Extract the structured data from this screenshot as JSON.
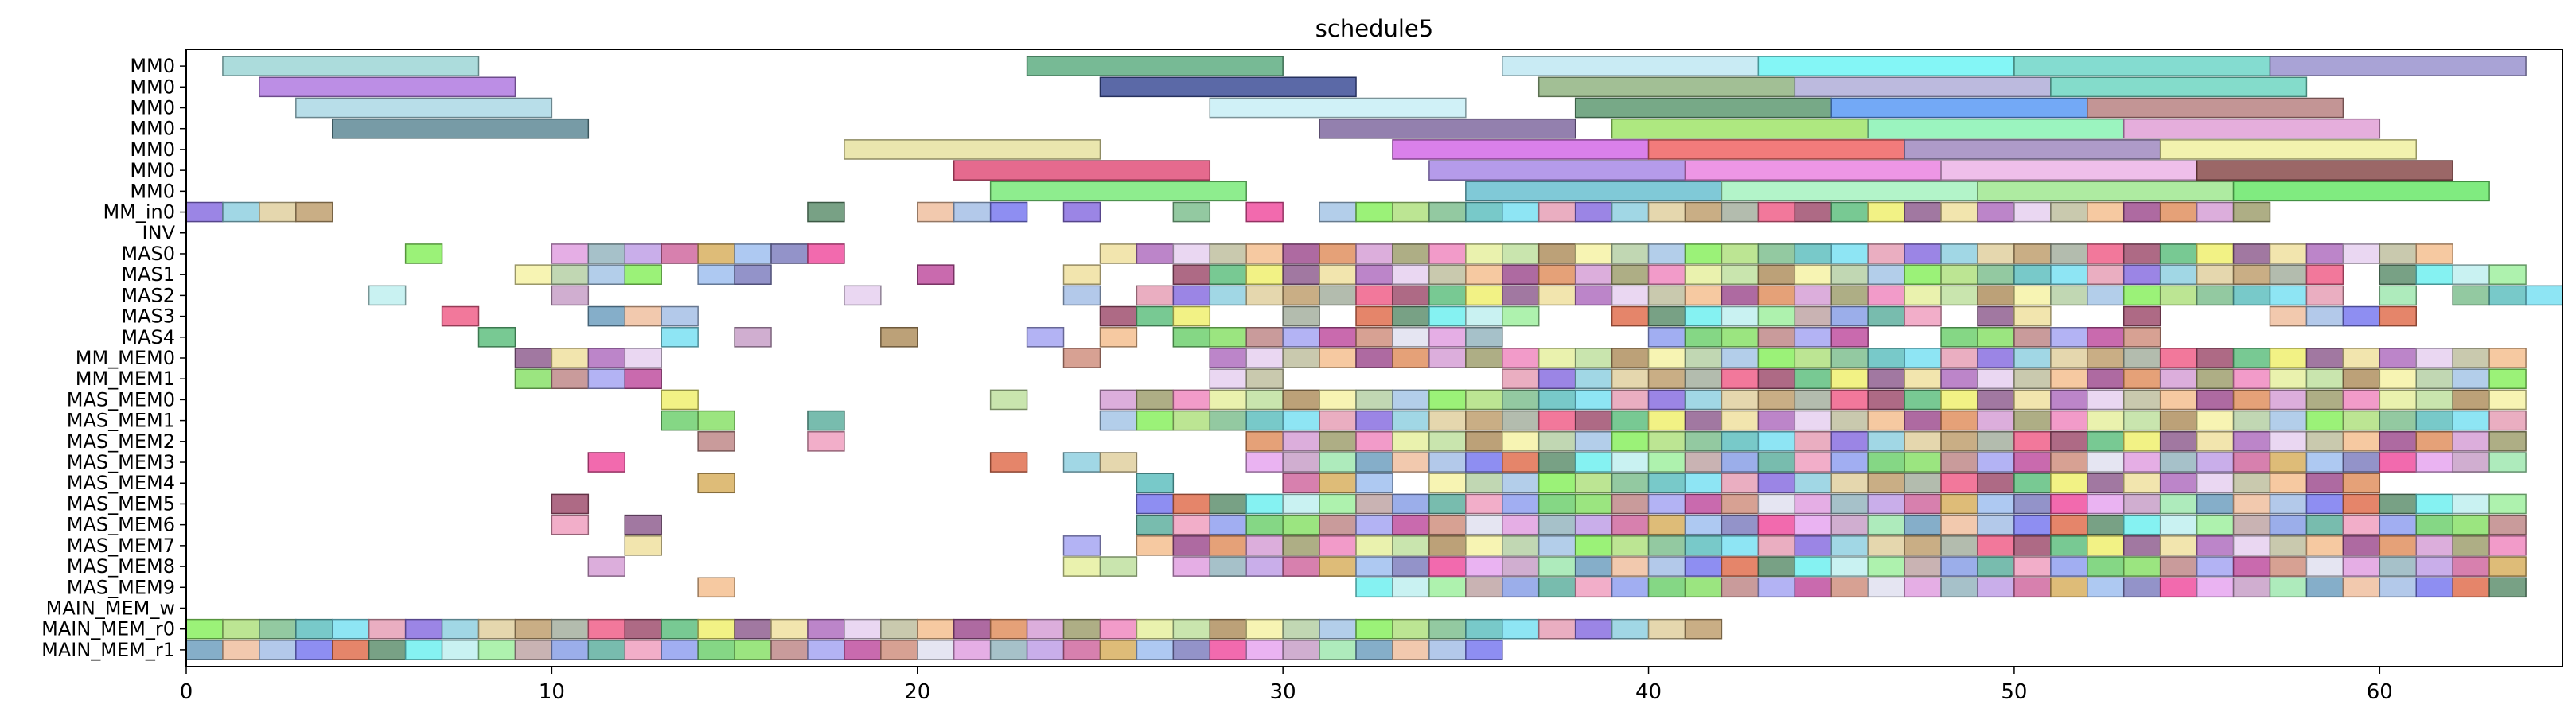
{
  "chart_data": {
    "type": "gantt",
    "title": "schedule5",
    "xlabel": "",
    "ylabel": "",
    "xlim": [
      0,
      65
    ],
    "xticks": [
      0,
      10,
      20,
      30,
      40,
      50,
      60
    ],
    "grid": false,
    "legend": "none",
    "rows": [
      "MM0",
      "MM0",
      "MM0",
      "MM0",
      "MM0",
      "MM0",
      "MM0",
      "MM_in0",
      "INV",
      "MAS0",
      "MAS1",
      "MAS2",
      "MAS3",
      "MAS4",
      "MM_MEM0",
      "MM_MEM1",
      "MAS_MEM0",
      "MAS_MEM1",
      "MAS_MEM2",
      "MAS_MEM3",
      "MAS_MEM4",
      "MAS_MEM5",
      "MAS_MEM6",
      "MAS_MEM7",
      "MAS_MEM8",
      "MAS_MEM9",
      "MAIN_MEM_w",
      "MAIN_MEM_r0",
      "MAIN_MEM_r1"
    ],
    "tasks": [
      {
        "row": 0,
        "start": 1,
        "end": 8,
        "color": "#9dd6d6"
      },
      {
        "row": 0,
        "start": 23,
        "end": 30,
        "color": "#5fae83"
      },
      {
        "row": 0,
        "start": 36,
        "end": 43,
        "color": "#bfe8f2"
      },
      {
        "row": 0,
        "start": 43,
        "end": 50,
        "color": "#6ff5f5"
      },
      {
        "row": 0,
        "start": 50,
        "end": 57,
        "color": "#6fd6c8"
      },
      {
        "row": 0,
        "start": 57,
        "end": 64,
        "color": "#9a93cf"
      },
      {
        "row": 1,
        "start": 2,
        "end": 9,
        "color": "#b07ae0"
      },
      {
        "row": 1,
        "start": 25,
        "end": 32,
        "color": "#3e4f98"
      },
      {
        "row": 1,
        "start": 37,
        "end": 44,
        "color": "#92b483"
      },
      {
        "row": 1,
        "start": 44,
        "end": 51,
        "color": "#b0aed8"
      },
      {
        "row": 1,
        "start": 51,
        "end": 58,
        "color": "#6fd6c2"
      },
      {
        "row": 2,
        "start": 3,
        "end": 10,
        "color": "#acd8e5"
      },
      {
        "row": 2,
        "start": 28,
        "end": 35,
        "color": "#c8eef6"
      },
      {
        "row": 2,
        "start": 38,
        "end": 45,
        "color": "#5f9a72"
      },
      {
        "row": 2,
        "start": 45,
        "end": 52,
        "color": "#5a9af5"
      },
      {
        "row": 2,
        "start": 52,
        "end": 59,
        "color": "#b98282"
      },
      {
        "row": 3,
        "start": 4,
        "end": 11,
        "color": "#5f8a96"
      },
      {
        "row": 3,
        "start": 31,
        "end": 38,
        "color": "#806aa0"
      },
      {
        "row": 3,
        "start": 39,
        "end": 46,
        "color": "#a0e46a"
      },
      {
        "row": 3,
        "start": 46,
        "end": 53,
        "color": "#8af2b4"
      },
      {
        "row": 3,
        "start": 53,
        "end": 60,
        "color": "#e0a0d6"
      },
      {
        "row": 4,
        "start": 18,
        "end": 25,
        "color": "#e6e2a0"
      },
      {
        "row": 4,
        "start": 33,
        "end": 40,
        "color": "#d46ae6"
      },
      {
        "row": 4,
        "start": 40,
        "end": 47,
        "color": "#f06464"
      },
      {
        "row": 4,
        "start": 47,
        "end": 54,
        "color": "#a08ac0"
      },
      {
        "row": 4,
        "start": 54,
        "end": 61,
        "color": "#f0f0a0"
      },
      {
        "row": 5,
        "start": 21,
        "end": 28,
        "color": "#e0507a"
      },
      {
        "row": 5,
        "start": 34,
        "end": 41,
        "color": "#a88ae6"
      },
      {
        "row": 5,
        "start": 41,
        "end": 48,
        "color": "#ea84e0"
      },
      {
        "row": 5,
        "start": 48,
        "end": 55,
        "color": "#ecb4e6"
      },
      {
        "row": 5,
        "start": 55,
        "end": 62,
        "color": "#8a4c4c"
      },
      {
        "row": 6,
        "start": 22,
        "end": 29,
        "color": "#7aea7a"
      },
      {
        "row": 6,
        "start": 35,
        "end": 42,
        "color": "#6ac0d0"
      },
      {
        "row": 6,
        "start": 42,
        "end": 49,
        "color": "#a6f2c0"
      },
      {
        "row": 6,
        "start": 49,
        "end": 56,
        "color": "#a0e890"
      },
      {
        "row": 6,
        "start": 56,
        "end": 63,
        "color": "#6ae86a"
      }
    ],
    "unit_cells": {
      "palette": [
        "#a6c0e6",
        "#f6f2a6",
        "#8ae06a",
        "#a6b0a0",
        "#f050a0",
        "#d6a0d6",
        "#c0a6a6",
        "#7ae0f2",
        "#96b6c0",
        "#b070c0",
        "#7a7af0",
        "#b6d0a6",
        "#c08a8a",
        "#f0608a",
        "#e6a6f0",
        "#a0a070",
        "#8aa0e6",
        "#e6a0b6",
        "#c0a0e6",
        "#e6d0f0",
        "#e07050",
        "#a6c6e6",
        "#a6a6f2",
        "#a05070",
        "#c8a0c8",
        "#f08ac0",
        "#60b0a0",
        "#8a70e0",
        "#d06aa0",
        "#c0c0a0",
        "#609070",
        "#8af060",
        "#c050a0",
        "#60c080",
        "#a0e8b0",
        "#e6f0a0",
        "#f0a0c0",
        "#90d0e0",
        "#d8b060",
        "#f5c090",
        "#70f0f0",
        "#b0e080",
        "#d09080",
        "#f0f070",
        "#70a0c0",
        "#c0e0a0",
        "#90a0f0",
        "#e0d0a0",
        "#a0c0f0",
        "#a05090",
        "#c0f0f0",
        "#80c090",
        "#e0e0f0",
        "#906090",
        "#f0c0a0",
        "#b09060",
        "#70d070",
        "#c0a070",
        "#8080c0",
        "#e09060",
        "#a0f0a0",
        "#60c0c0",
        "#e0a0e0",
        "#f0e0a0"
      ],
      "rows": [
        {
          "row": 7,
          "slots": [
            0,
            1,
            2,
            3,
            17,
            20,
            21,
            22,
            24,
            27,
            29,
            31,
            32,
            33,
            34,
            35,
            36,
            37,
            38,
            39,
            40,
            41,
            42,
            43,
            44,
            45,
            46,
            47,
            48,
            49,
            50,
            51,
            52,
            53,
            54,
            55,
            56
          ]
        },
        {
          "row": 9,
          "slots": [
            6,
            10,
            11,
            12,
            13,
            14,
            15,
            16,
            17,
            25,
            26,
            27,
            28,
            29,
            30,
            31,
            32,
            33,
            34,
            35,
            36,
            37,
            38,
            39,
            40,
            41,
            42,
            43,
            44,
            45,
            46,
            47,
            48,
            49,
            50,
            51,
            52,
            53,
            54,
            55,
            56,
            57,
            58,
            59,
            60,
            61
          ]
        },
        {
          "row": 10,
          "slots": [
            9,
            10,
            11,
            12,
            14,
            15,
            20,
            24,
            27,
            28,
            29,
            30,
            31,
            32,
            33,
            34,
            35,
            36,
            37,
            38,
            39,
            40,
            41,
            42,
            43,
            44,
            45,
            46,
            47,
            48,
            49,
            50,
            51,
            52,
            53,
            54,
            55,
            56,
            57,
            58,
            60,
            61,
            62,
            63
          ]
        },
        {
          "row": 11,
          "slots": [
            5,
            10,
            18,
            24,
            26,
            27,
            28,
            29,
            30,
            31,
            32,
            33,
            34,
            35,
            36,
            37,
            38,
            39,
            40,
            41,
            42,
            43,
            44,
            45,
            46,
            47,
            48,
            49,
            50,
            51,
            52,
            53,
            54,
            55,
            56,
            57,
            58,
            60,
            62,
            63,
            64
          ]
        },
        {
          "row": 12,
          "slots": [
            7,
            11,
            12,
            13,
            25,
            26,
            27,
            30,
            32,
            33,
            34,
            35,
            36,
            39,
            40,
            41,
            42,
            43,
            44,
            45,
            46,
            47,
            49,
            50,
            53,
            57,
            58,
            59,
            60
          ]
        },
        {
          "row": 13,
          "slots": [
            8,
            13,
            15,
            19,
            23,
            25,
            27,
            28,
            29,
            30,
            31,
            32,
            33,
            34,
            35,
            40,
            41,
            42,
            43,
            44,
            45,
            48,
            49,
            50,
            51,
            52,
            53
          ]
        },
        {
          "row": 14,
          "slots": [
            9,
            10,
            11,
            12,
            24,
            28,
            29,
            30,
            31,
            32,
            33,
            34,
            35,
            36,
            37,
            38,
            39,
            40,
            41,
            42,
            43,
            44,
            45,
            46,
            47,
            48,
            49,
            50,
            51,
            52,
            53,
            54,
            55,
            56,
            57,
            58,
            59,
            60,
            61,
            62,
            63
          ]
        },
        {
          "row": 15,
          "slots": [
            9,
            10,
            11,
            12,
            28,
            29,
            36,
            37,
            38,
            39,
            40,
            41,
            42,
            43,
            44,
            45,
            46,
            47,
            48,
            49,
            50,
            51,
            52,
            53,
            54,
            55,
            56,
            57,
            58,
            59,
            60,
            61,
            62,
            63
          ]
        },
        {
          "row": 16,
          "slots": [
            13,
            22,
            25,
            26,
            27,
            28,
            29,
            30,
            31,
            32,
            33,
            34,
            35,
            36,
            37,
            38,
            39,
            40,
            41,
            42,
            43,
            44,
            45,
            46,
            47,
            48,
            49,
            50,
            51,
            52,
            53,
            54,
            55,
            56,
            57,
            58,
            59,
            60,
            61,
            62,
            63
          ]
        },
        {
          "row": 17,
          "slots": [
            13,
            14,
            17,
            25,
            26,
            27,
            28,
            29,
            30,
            31,
            32,
            33,
            34,
            35,
            36,
            37,
            38,
            39,
            40,
            41,
            42,
            43,
            44,
            45,
            46,
            47,
            48,
            49,
            50,
            51,
            52,
            53,
            54,
            55,
            56,
            57,
            58,
            59,
            60,
            61,
            62,
            63
          ]
        },
        {
          "row": 18,
          "slots": [
            14,
            17,
            29,
            30,
            31,
            32,
            33,
            34,
            35,
            36,
            37,
            38,
            39,
            40,
            41,
            42,
            43,
            44,
            45,
            46,
            47,
            48,
            49,
            50,
            51,
            52,
            53,
            54,
            55,
            56,
            57,
            58,
            59,
            60,
            61,
            62,
            63
          ]
        },
        {
          "row": 19,
          "slots": [
            11,
            22,
            24,
            25,
            29,
            30,
            31,
            32,
            33,
            34,
            35,
            36,
            37,
            38,
            39,
            40,
            41,
            42,
            43,
            44,
            45,
            46,
            47,
            48,
            49,
            50,
            51,
            52,
            53,
            54,
            55,
            56,
            57,
            58,
            59,
            60,
            61,
            62,
            63
          ]
        },
        {
          "row": 20,
          "slots": [
            14,
            26,
            30,
            31,
            32,
            34,
            35,
            36,
            37,
            38,
            39,
            40,
            41,
            42,
            43,
            44,
            45,
            46,
            47,
            48,
            49,
            50,
            51,
            52,
            53,
            54,
            55,
            56,
            57,
            58,
            59
          ]
        },
        {
          "row": 21,
          "slots": [
            10,
            26,
            27,
            28,
            29,
            30,
            31,
            32,
            33,
            34,
            35,
            36,
            37,
            38,
            39,
            40,
            41,
            42,
            43,
            44,
            45,
            46,
            47,
            48,
            49,
            50,
            51,
            52,
            53,
            54,
            55,
            56,
            57,
            58,
            59,
            60,
            61,
            62,
            63
          ]
        },
        {
          "row": 22,
          "slots": [
            10,
            12,
            26,
            27,
            28,
            29,
            30,
            31,
            32,
            33,
            34,
            35,
            36,
            37,
            38,
            39,
            40,
            41,
            42,
            43,
            44,
            45,
            46,
            47,
            48,
            49,
            50,
            51,
            52,
            53,
            54,
            55,
            56,
            57,
            58,
            59,
            60,
            61,
            62,
            63
          ]
        },
        {
          "row": 23,
          "slots": [
            12,
            24,
            26,
            27,
            28,
            29,
            30,
            31,
            32,
            33,
            34,
            35,
            36,
            37,
            38,
            39,
            40,
            41,
            42,
            43,
            44,
            45,
            46,
            47,
            48,
            49,
            50,
            51,
            52,
            53,
            54,
            55,
            56,
            57,
            58,
            59,
            60,
            61,
            62,
            63
          ]
        },
        {
          "row": 24,
          "slots": [
            11,
            24,
            25,
            27,
            28,
            29,
            30,
            31,
            32,
            33,
            34,
            35,
            36,
            37,
            38,
            39,
            40,
            41,
            42,
            43,
            44,
            45,
            46,
            47,
            48,
            49,
            50,
            51,
            52,
            53,
            54,
            55,
            56,
            57,
            58,
            59,
            60,
            61,
            62,
            63
          ]
        },
        {
          "row": 25,
          "slots": [
            14,
            32,
            33,
            34,
            35,
            36,
            37,
            38,
            39,
            40,
            41,
            42,
            43,
            44,
            45,
            46,
            47,
            48,
            49,
            50,
            51,
            52,
            53,
            54,
            55,
            56,
            57,
            58,
            59,
            60,
            61,
            62,
            63
          ]
        },
        {
          "row": 27,
          "slots": [
            0,
            1,
            2,
            3,
            4,
            5,
            6,
            7,
            8,
            9,
            10,
            11,
            12,
            13,
            14,
            15,
            16,
            17,
            18,
            19,
            20,
            21,
            22,
            23,
            24,
            25,
            26,
            27,
            28,
            29,
            30,
            31,
            32,
            33,
            34,
            35,
            36,
            37,
            38,
            39,
            40,
            41
          ]
        },
        {
          "row": 28,
          "slots": [
            0,
            1,
            2,
            3,
            4,
            5,
            6,
            7,
            8,
            9,
            10,
            11,
            12,
            13,
            14,
            15,
            16,
            17,
            18,
            19,
            20,
            21,
            22,
            23,
            24,
            25,
            26,
            27,
            28,
            29,
            30,
            31,
            32,
            33,
            34,
            35
          ]
        }
      ]
    }
  }
}
